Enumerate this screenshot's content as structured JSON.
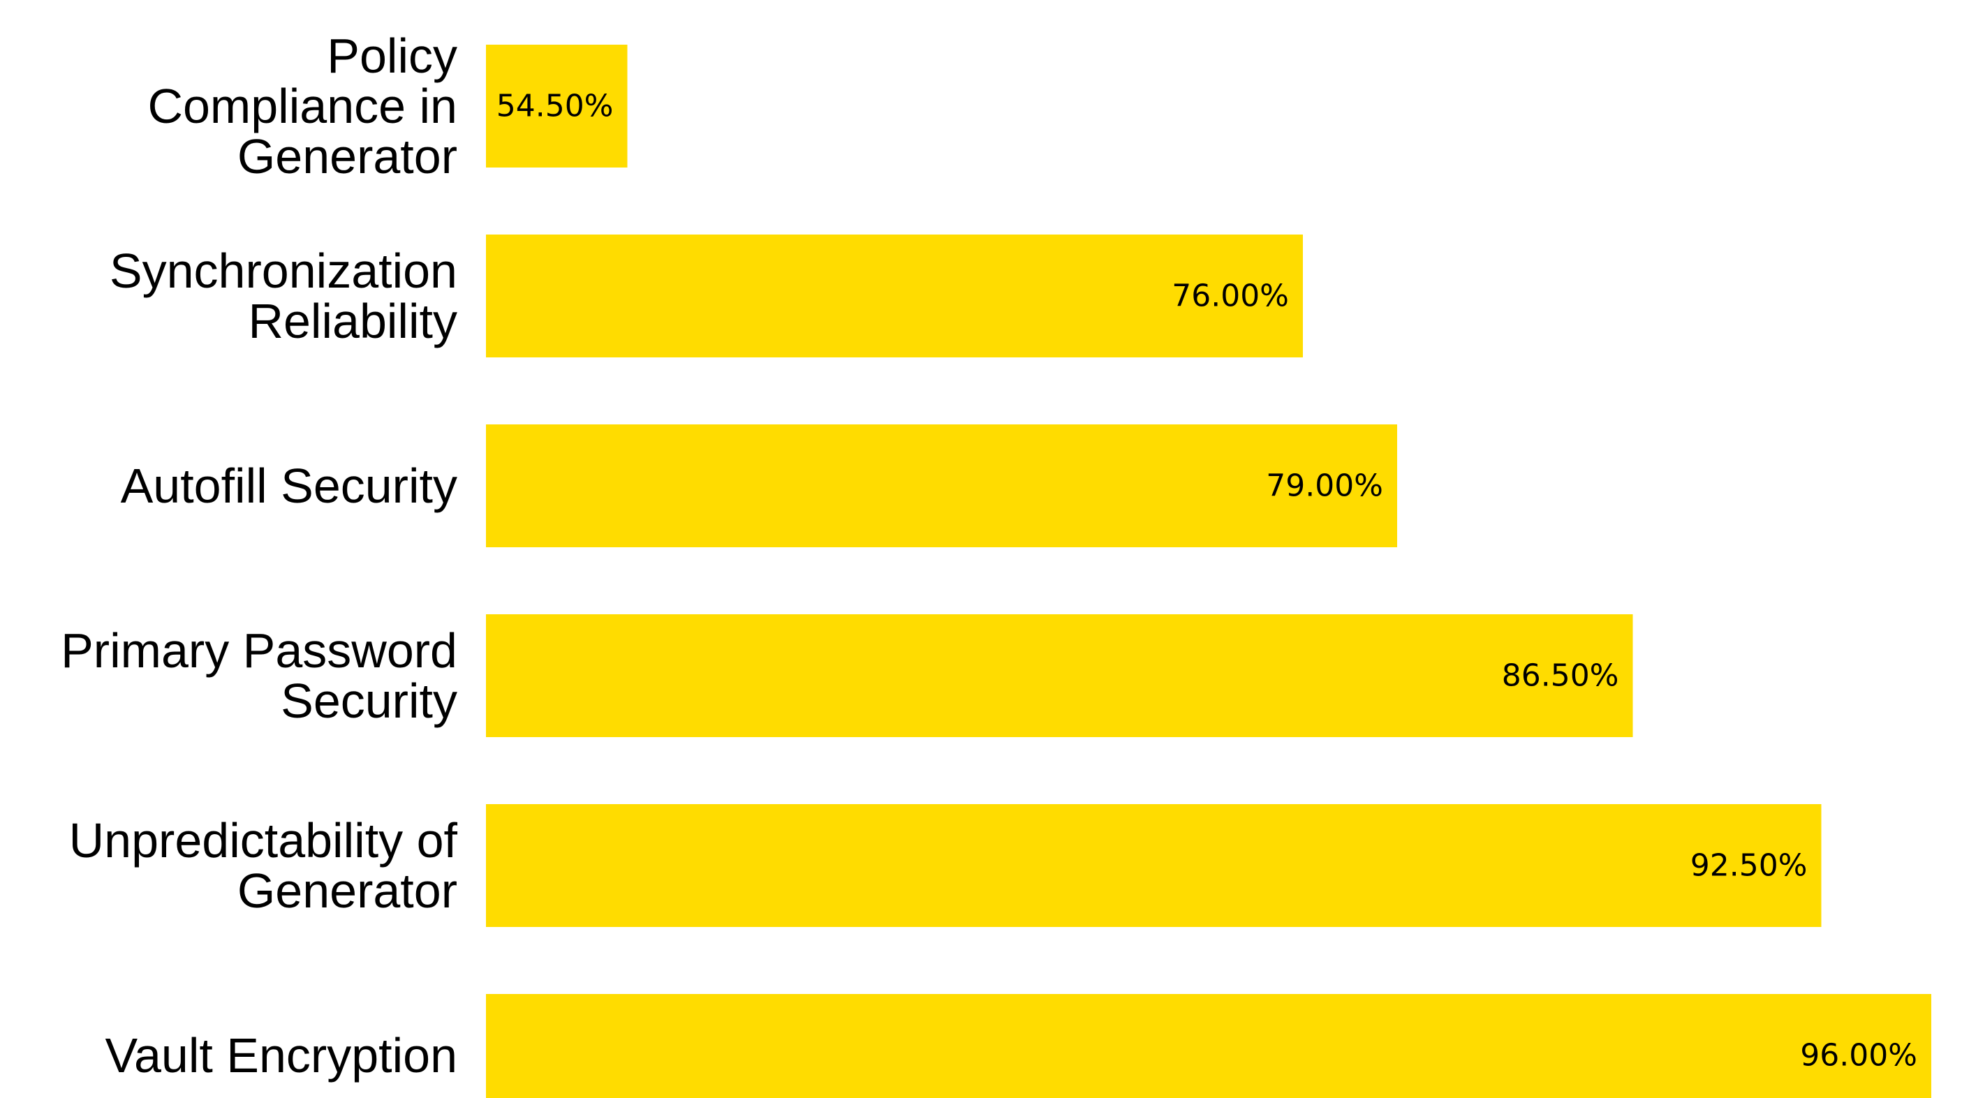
{
  "chart_data": {
    "type": "bar",
    "orientation": "horizontal",
    "categories": [
      [
        "Policy",
        "Compliance in",
        "Generator"
      ],
      [
        "Synchronization",
        "Reliability"
      ],
      [
        "Autofill Security"
      ],
      [
        "Primary Password",
        "Security"
      ],
      [
        "Unpredictability of",
        "Generator"
      ],
      [
        "Vault Encryption"
      ]
    ],
    "values": [
      54.5,
      76.0,
      79.0,
      86.5,
      92.5,
      96.0
    ],
    "value_labels": [
      "54.50%",
      "76.00%",
      "79.00%",
      "86.50%",
      "92.50%",
      "96.00%"
    ],
    "xlim": [
      50,
      96
    ],
    "title": "",
    "xlabel": "",
    "ylabel": "",
    "grid": false,
    "legend": "none",
    "bar_color": "#FFDC00",
    "text_color": "#000000",
    "background": "#ffffff"
  }
}
